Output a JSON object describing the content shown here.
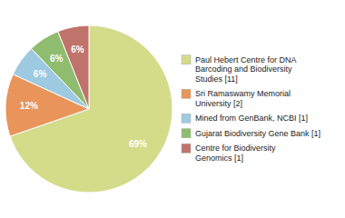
{
  "chart_data": {
    "type": "pie",
    "categories": [
      "Paul Hebert Centre for DNA\nBarcoding and Biodiversity\nStudies [11]",
      "Sri Ramaswamy Memorial\nUniversity [2]",
      "Mined from GenBank, NCBI [1]",
      "Gujarat Biodiversity Gene Bank [1]",
      "Centre for Biodiversity\nGenomics [1]"
    ],
    "values": [
      69,
      12,
      6,
      6,
      6
    ],
    "value_labels": [
      "69%",
      "12%",
      "6%",
      "6%",
      "6%"
    ],
    "colors": [
      "#d4dc8a",
      "#e8945a",
      "#9ecae1",
      "#8fbc6e",
      "#c0736a"
    ],
    "data_labels": true,
    "legend": "right"
  }
}
